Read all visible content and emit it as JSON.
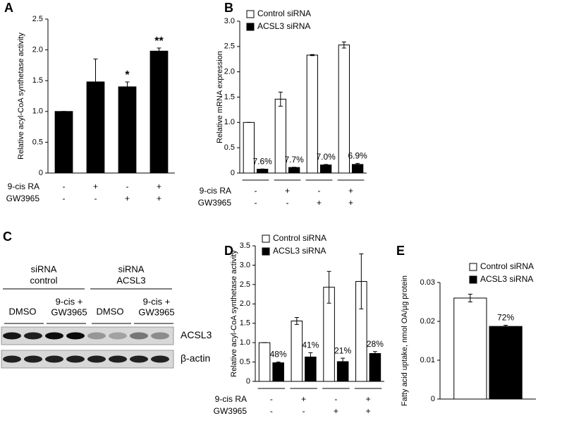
{
  "chart_data": [
    {
      "type": "bar",
      "panel": "A",
      "ylabel": "Relative acyl-CoA synthetase activity",
      "categories": [
        null,
        null,
        null,
        null
      ],
      "values": [
        1.0,
        1.48,
        1.4,
        1.98
      ],
      "errors": [
        0,
        0.37,
        0.08,
        0.05
      ],
      "color": "#000000",
      "value_annotations": [
        null,
        null,
        "*",
        "**"
      ],
      "ylim": [
        0,
        2.5
      ],
      "yticks": [
        0,
        0.5,
        {
          "value": 1,
          "label": "1.0"
        },
        1.5,
        {
          "value": 2,
          "label": "2.0"
        },
        2.5
      ],
      "conditions": [
        {
          "label": "9-cis RA",
          "values": [
            "-",
            "+",
            "-",
            "+"
          ]
        },
        {
          "label": "GW3965",
          "values": [
            "-",
            "-",
            "+",
            "+"
          ]
        }
      ]
    },
    {
      "type": "bar",
      "panel": "B",
      "ylabel": "Relative mRNA expression",
      "categories": [
        null,
        null,
        null,
        null
      ],
      "series": [
        {
          "name": "Control siRNA",
          "color": "#ffffff",
          "values": [
            1.0,
            1.46,
            2.33,
            2.53
          ],
          "errors": [
            0,
            0.14,
            0.01,
            0.06
          ]
        },
        {
          "name": "ACSL3 siRNA",
          "color": "#000000",
          "values": [
            0.076,
            0.11,
            0.16,
            0.17
          ],
          "errors": [
            0.005,
            0.005,
            0.01,
            0.02
          ],
          "annotations": [
            "7.6%",
            "7.7%",
            "7.0%",
            "6.9%"
          ]
        }
      ],
      "legend": "top-left",
      "ylim": [
        0,
        3
      ],
      "yticks": [
        0,
        0.5,
        {
          "value": 1,
          "label": "1.0"
        },
        1.5,
        {
          "value": 2,
          "label": "2.0"
        },
        2.5,
        {
          "value": 3,
          "label": "3.0"
        }
      ],
      "conditions": [
        {
          "label": "9-cis RA",
          "values": [
            "-",
            "+",
            "-",
            "+"
          ]
        },
        {
          "label": "GW3965",
          "values": [
            "-",
            "-",
            "+",
            "+"
          ]
        }
      ]
    },
    {
      "type": "bar",
      "panel": "D",
      "ylabel": "Relative acyl-CoA synthetase activity",
      "categories": [
        null,
        null,
        null,
        null
      ],
      "series": [
        {
          "name": "Control siRNA",
          "color": "#ffffff",
          "values": [
            1.0,
            1.56,
            2.43,
            2.58
          ],
          "errors": [
            0,
            0.09,
            0.41,
            0.71
          ]
        },
        {
          "name": "ACSL3 siRNA",
          "color": "#000000",
          "values": [
            0.48,
            0.63,
            0.51,
            0.72
          ],
          "errors": [
            0.02,
            0.11,
            0.09,
            0.05
          ],
          "annotations": [
            "48%",
            "41%",
            "21%",
            "28%"
          ]
        }
      ],
      "legend": "top-left",
      "ylim": [
        0,
        3.5
      ],
      "yticks": [
        0,
        0.5,
        {
          "value": 1,
          "label": "1.0"
        },
        1.5,
        {
          "value": 2,
          "label": "2.0"
        },
        2.5,
        {
          "value": 3,
          "label": "3.0"
        },
        3.5
      ],
      "conditions": [
        {
          "label": "9-cis RA",
          "values": [
            "-",
            "+",
            "-",
            "+"
          ]
        },
        {
          "label": "GW3965",
          "values": [
            "-",
            "-",
            "+",
            "+"
          ]
        }
      ]
    },
    {
      "type": "bar",
      "panel": "E",
      "ylabel": "Fatty acid uptake, nmol OA/µg protein",
      "categories": [
        null
      ],
      "series": [
        {
          "name": "Control siRNA",
          "color": "#ffffff",
          "values": [
            0.026
          ],
          "errors": [
            0.001
          ]
        },
        {
          "name": "ACSL3 siRNA",
          "color": "#000000",
          "values": [
            0.0187
          ],
          "errors": [
            0.0003
          ],
          "annotations": [
            "72%"
          ]
        }
      ],
      "legend": "top-right",
      "ylim": [
        0,
        0.03
      ],
      "yticks": [
        0,
        0.01,
        0.02,
        0.03
      ]
    }
  ],
  "blot": {
    "panel": "C",
    "groups": [
      {
        "label": [
          "siRNA",
          "control"
        ],
        "lanes": [
          [
            "DMSO"
          ],
          [
            "9-cis +",
            "GW3965"
          ]
        ]
      },
      {
        "label": [
          "siRNA",
          "ACSL3"
        ],
        "lanes": [
          [
            "DMSO"
          ],
          [
            "9-cis +",
            "GW3965"
          ]
        ]
      }
    ],
    "rows": [
      "ACSL3",
      "β-actin"
    ]
  }
}
